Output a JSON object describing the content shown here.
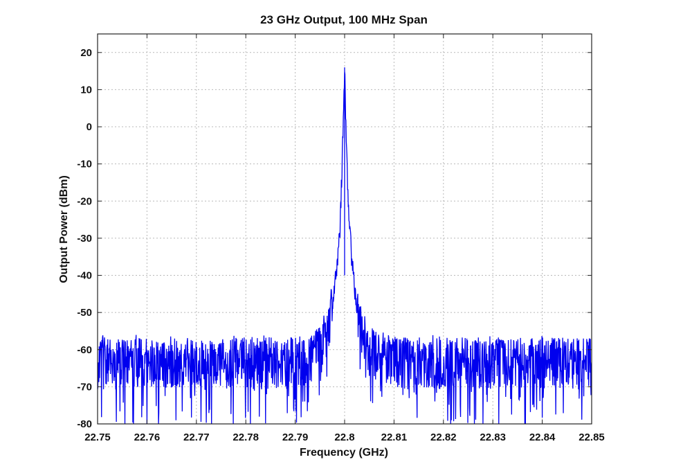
{
  "chart_data": {
    "type": "line",
    "title": "23 GHz Output, 100 MHz Span",
    "xlabel": "Frequency (GHz)",
    "ylabel": "Output Power (dBm)",
    "xlim": [
      22.75,
      22.85
    ],
    "ylim": [
      -80,
      25
    ],
    "xticks": [
      "22.75",
      "22.76",
      "22.77",
      "22.78",
      "22.79",
      "22.8",
      "22.81",
      "22.82",
      "22.83",
      "22.84",
      "22.85"
    ],
    "yticks": [
      "-80",
      "-70",
      "-60",
      "-50",
      "-40",
      "-30",
      "-20",
      "-10",
      "0",
      "10",
      "20"
    ],
    "grid": true,
    "series": [
      {
        "color": "#0000ee",
        "x": [
          22.75,
          22.76,
          22.77,
          22.78,
          22.79,
          22.795,
          22.797,
          22.798,
          22.799,
          22.7995,
          22.8,
          22.8005,
          22.801,
          22.802,
          22.803,
          22.805,
          22.81,
          22.82,
          22.83,
          22.84,
          22.85
        ],
        "y": [
          -63,
          -63,
          -63,
          -63,
          -63,
          -60,
          -52,
          -43,
          -30,
          -10,
          16,
          -12,
          -28,
          -44,
          -52,
          -60,
          -63,
          -63,
          -63,
          -63,
          -63
        ],
        "noise_band": {
          "top": -56,
          "floor": -80
        }
      }
    ]
  }
}
